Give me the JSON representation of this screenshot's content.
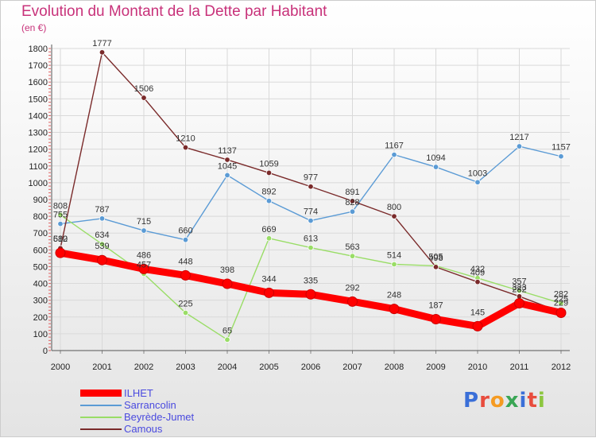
{
  "header": {
    "title": "Evolution du Montant de la Dette par Habitant",
    "unit": "(en €)"
  },
  "brand": {
    "text": "Proxiti",
    "colors": [
      "#3a6fd8",
      "#e84c3d",
      "#f59b22",
      "#3aa655",
      "#3a6fd8",
      "#e84c3d",
      "#8cc63f"
    ]
  },
  "chart_data": {
    "type": "line",
    "title": "Evolution du Montant de la Dette par Habitant",
    "ylabel": "(en €)",
    "xlabel": "",
    "categories": [
      "2000",
      "2001",
      "2002",
      "2003",
      "2004",
      "2005",
      "2006",
      "2007",
      "2008",
      "2009",
      "2010",
      "2011",
      "2012"
    ],
    "ylim": [
      0,
      1800
    ],
    "yticks": [
      0,
      100,
      200,
      300,
      400,
      500,
      600,
      700,
      800,
      900,
      1000,
      1100,
      1200,
      1300,
      1400,
      1500,
      1600,
      1700,
      1800
    ],
    "grid": true,
    "legend_position": "bottom-left",
    "series": [
      {
        "name": "ILHET",
        "color": "#ff0000",
        "values": [
          582,
          539,
          486,
          448,
          398,
          344,
          335,
          292,
          248,
          187,
          145,
          282,
          225
        ]
      },
      {
        "name": "Sarrancolin",
        "color": "#5b9bd5",
        "values": [
          755,
          787,
          715,
          660,
          1045,
          892,
          774,
          828,
          1167,
          1094,
          1003,
          1217,
          1157
        ]
      },
      {
        "name": "Beyrède-Jumet",
        "color": "#99dd66",
        "values": [
          808,
          634,
          457,
          225,
          65,
          669,
          613,
          563,
          514,
          505,
          432,
          357,
          282
        ]
      },
      {
        "name": "Camous",
        "color": "#7a2a2a",
        "values": [
          610,
          1777,
          1506,
          1210,
          1137,
          1059,
          977,
          891,
          800,
          498,
          409,
          323,
          229
        ]
      }
    ]
  }
}
